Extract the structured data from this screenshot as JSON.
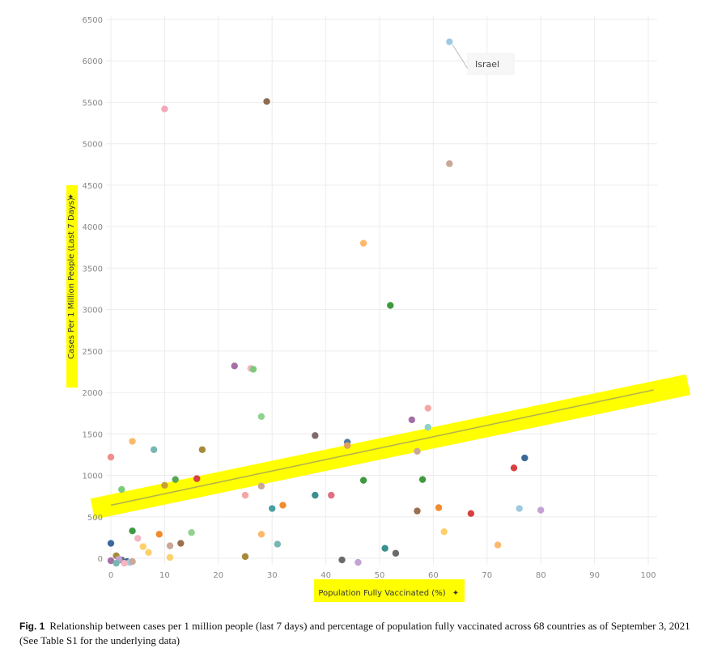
{
  "chart_data": {
    "type": "scatter",
    "xlabel": "Population Fully Vaccinated (%)",
    "ylabel": "Cases Per 1 Million People (Last 7 Days)",
    "xlim": [
      0,
      100
    ],
    "ylim": [
      0,
      6500
    ],
    "x_ticks": [
      "0",
      "10",
      "20",
      "30",
      "40",
      "50",
      "60",
      "70",
      "80",
      "90",
      "100"
    ],
    "y_ticks": [
      "0",
      "500",
      "1000",
      "1500",
      "2000",
      "2500",
      "3000",
      "3500",
      "4000",
      "4500",
      "5000",
      "5500",
      "6000",
      "6500"
    ],
    "grid": true,
    "trendline": {
      "x": [
        0,
        101
      ],
      "y": [
        640,
        2030
      ],
      "color": "#b5b54a",
      "highlight": "#ffff00"
    },
    "annotation": {
      "text": "Israel",
      "x": 63,
      "y": 6230
    },
    "points": [
      {
        "x": 63,
        "y": 6230,
        "color": "#9ecae1"
      },
      {
        "x": 10,
        "y": 5420,
        "color": "#f4a9b8"
      },
      {
        "x": 29,
        "y": 5510,
        "color": "#8c6d4f"
      },
      {
        "x": 63,
        "y": 4760,
        "color": "#c9a899"
      },
      {
        "x": 47,
        "y": 3800,
        "color": "#fdb96b"
      },
      {
        "x": 52,
        "y": 3050,
        "color": "#3f9a3f"
      },
      {
        "x": 23,
        "y": 2320,
        "color": "#a56fa5"
      },
      {
        "x": 26,
        "y": 2290,
        "color": "#f4b6c2"
      },
      {
        "x": 26.5,
        "y": 2280,
        "color": "#7cc97c"
      },
      {
        "x": 28,
        "y": 1710,
        "color": "#8fd38f"
      },
      {
        "x": 59,
        "y": 1810,
        "color": "#f6a5a5"
      },
      {
        "x": 56,
        "y": 1670,
        "color": "#a56fa5"
      },
      {
        "x": 59,
        "y": 1580,
        "color": "#8ed1c6"
      },
      {
        "x": 38,
        "y": 1480,
        "color": "#7f6a6a"
      },
      {
        "x": 44,
        "y": 1400,
        "color": "#4e79a7"
      },
      {
        "x": 44,
        "y": 1360,
        "color": "#e0a060"
      },
      {
        "x": 4,
        "y": 1410,
        "color": "#fdb96b"
      },
      {
        "x": 8,
        "y": 1310,
        "color": "#76b7b2"
      },
      {
        "x": 17,
        "y": 1310,
        "color": "#a68a3a"
      },
      {
        "x": 57,
        "y": 1290,
        "color": "#c9a899"
      },
      {
        "x": 0,
        "y": 1220,
        "color": "#f18d8d"
      },
      {
        "x": 77,
        "y": 1210,
        "color": "#3a6a9b"
      },
      {
        "x": 75,
        "y": 1090,
        "color": "#d94040"
      },
      {
        "x": 58,
        "y": 950,
        "color": "#3f9a3f"
      },
      {
        "x": 12,
        "y": 950,
        "color": "#56a656"
      },
      {
        "x": 16,
        "y": 960,
        "color": "#d94040"
      },
      {
        "x": 10,
        "y": 880,
        "color": "#c9a030"
      },
      {
        "x": 2,
        "y": 830,
        "color": "#7cc97c"
      },
      {
        "x": 47,
        "y": 940,
        "color": "#3f9a3f"
      },
      {
        "x": 28,
        "y": 870,
        "color": "#c9a899"
      },
      {
        "x": 25,
        "y": 760,
        "color": "#f6a5a5"
      },
      {
        "x": 38,
        "y": 760,
        "color": "#3a8f8f"
      },
      {
        "x": 41,
        "y": 760,
        "color": "#e07080"
      },
      {
        "x": 32,
        "y": 640,
        "color": "#f08c2c"
      },
      {
        "x": 30,
        "y": 600,
        "color": "#4aa0a0"
      },
      {
        "x": 57,
        "y": 570,
        "color": "#9c6f4f"
      },
      {
        "x": 61,
        "y": 610,
        "color": "#f08c2c"
      },
      {
        "x": 67,
        "y": 540,
        "color": "#d94040"
      },
      {
        "x": 76,
        "y": 600,
        "color": "#9ecae1"
      },
      {
        "x": 80,
        "y": 580,
        "color": "#c4a2d4"
      },
      {
        "x": 4,
        "y": 330,
        "color": "#3f9a3f"
      },
      {
        "x": 15,
        "y": 310,
        "color": "#8fd38f"
      },
      {
        "x": 9,
        "y": 290,
        "color": "#f08c2c"
      },
      {
        "x": 5,
        "y": 240,
        "color": "#f4b6c2"
      },
      {
        "x": 0,
        "y": 180,
        "color": "#3a6a9b"
      },
      {
        "x": 13,
        "y": 180,
        "color": "#9c6f4f"
      },
      {
        "x": 31,
        "y": 170,
        "color": "#76b7b2"
      },
      {
        "x": 28,
        "y": 290,
        "color": "#fdb96b"
      },
      {
        "x": 62,
        "y": 320,
        "color": "#fdd06b"
      },
      {
        "x": 72,
        "y": 160,
        "color": "#fdb96b"
      },
      {
        "x": 6,
        "y": 140,
        "color": "#fdd06b"
      },
      {
        "x": 11,
        "y": 150,
        "color": "#c9a899"
      },
      {
        "x": 7,
        "y": 70,
        "color": "#fdd06b"
      },
      {
        "x": 51,
        "y": 120,
        "color": "#3a8f8f"
      },
      {
        "x": 53,
        "y": 60,
        "color": "#6b6b6b"
      },
      {
        "x": 25,
        "y": 20,
        "color": "#a68a3a"
      },
      {
        "x": 11,
        "y": 10,
        "color": "#fdd06b"
      },
      {
        "x": 1,
        "y": 30,
        "color": "#a68a3a"
      },
      {
        "x": 0,
        "y": -30,
        "color": "#a56fa5"
      },
      {
        "x": 2,
        "y": -20,
        "color": "#6b6b6b"
      },
      {
        "x": 3,
        "y": -40,
        "color": "#3a6a9b"
      },
      {
        "x": 1.5,
        "y": -10,
        "color": "#c4a2d4"
      },
      {
        "x": 43,
        "y": -20,
        "color": "#6b6b6b"
      },
      {
        "x": 46,
        "y": -50,
        "color": "#c4a2d4"
      },
      {
        "x": 3.5,
        "y": -50,
        "color": "#9ecae1"
      },
      {
        "x": 2.5,
        "y": -60,
        "color": "#f4b6c2"
      },
      {
        "x": 4,
        "y": -40,
        "color": "#c9a899"
      },
      {
        "x": 1,
        "y": -60,
        "color": "#76b7b2"
      }
    ]
  },
  "caption": {
    "label": "Fig. 1",
    "text": "Relationship between cases per 1 million people (last 7 days) and percentage of population fully vaccinated across 68 countries as of September 3, 2021 (See Table S1 for the underlying data)"
  }
}
